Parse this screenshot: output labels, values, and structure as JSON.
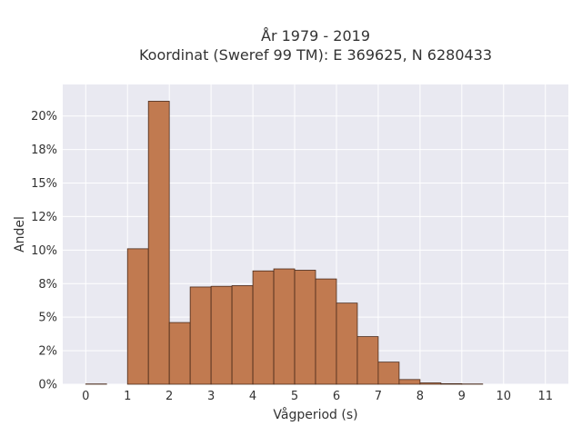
{
  "chart_data": {
    "type": "bar",
    "title_lines": [
      "År 1979 - 2019",
      "Koordinat (Sweref 99 TM): E 369625, N 6280433"
    ],
    "xlabel": "Vågperiod (s)",
    "ylabel": "Andel",
    "bin_width": 0.5,
    "bins": [
      {
        "start": 0.0,
        "value": 0.0002
      },
      {
        "start": 0.5,
        "value": 0.0
      },
      {
        "start": 1.0,
        "value": 0.101
      },
      {
        "start": 1.5,
        "value": 0.211
      },
      {
        "start": 2.0,
        "value": 0.046
      },
      {
        "start": 2.5,
        "value": 0.0725
      },
      {
        "start": 3.0,
        "value": 0.073
      },
      {
        "start": 3.5,
        "value": 0.0735
      },
      {
        "start": 4.0,
        "value": 0.0845
      },
      {
        "start": 4.5,
        "value": 0.086
      },
      {
        "start": 5.0,
        "value": 0.085
      },
      {
        "start": 5.5,
        "value": 0.0785
      },
      {
        "start": 6.0,
        "value": 0.0605
      },
      {
        "start": 6.5,
        "value": 0.0355
      },
      {
        "start": 7.0,
        "value": 0.0165
      },
      {
        "start": 7.5,
        "value": 0.0035
      },
      {
        "start": 8.0,
        "value": 0.001
      },
      {
        "start": 8.5,
        "value": 0.0004
      },
      {
        "start": 9.0,
        "value": 0.0002
      }
    ],
    "xticks": [
      0,
      1,
      2,
      3,
      4,
      5,
      6,
      7,
      8,
      9,
      10,
      11
    ],
    "xtick_labels": [
      "0",
      "1",
      "2",
      "3",
      "4",
      "5",
      "6",
      "7",
      "8",
      "9",
      "10",
      "11"
    ],
    "xlim": [
      -0.55,
      11.55
    ],
    "yticks": [
      0,
      0.025,
      0.05,
      0.075,
      0.1,
      0.125,
      0.15,
      0.175,
      0.2
    ],
    "ytick_labels": [
      "0%",
      "2%",
      "5%",
      "8%",
      "10%",
      "12%",
      "15%",
      "18%",
      "20%"
    ],
    "ylim": [
      0,
      0.2235
    ],
    "grid": true,
    "colors": {
      "bar_fill": "#c17a50",
      "bar_edge": "#4a2a1a",
      "plot_bg": "#e9e9f1",
      "grid": "#ffffff"
    }
  }
}
